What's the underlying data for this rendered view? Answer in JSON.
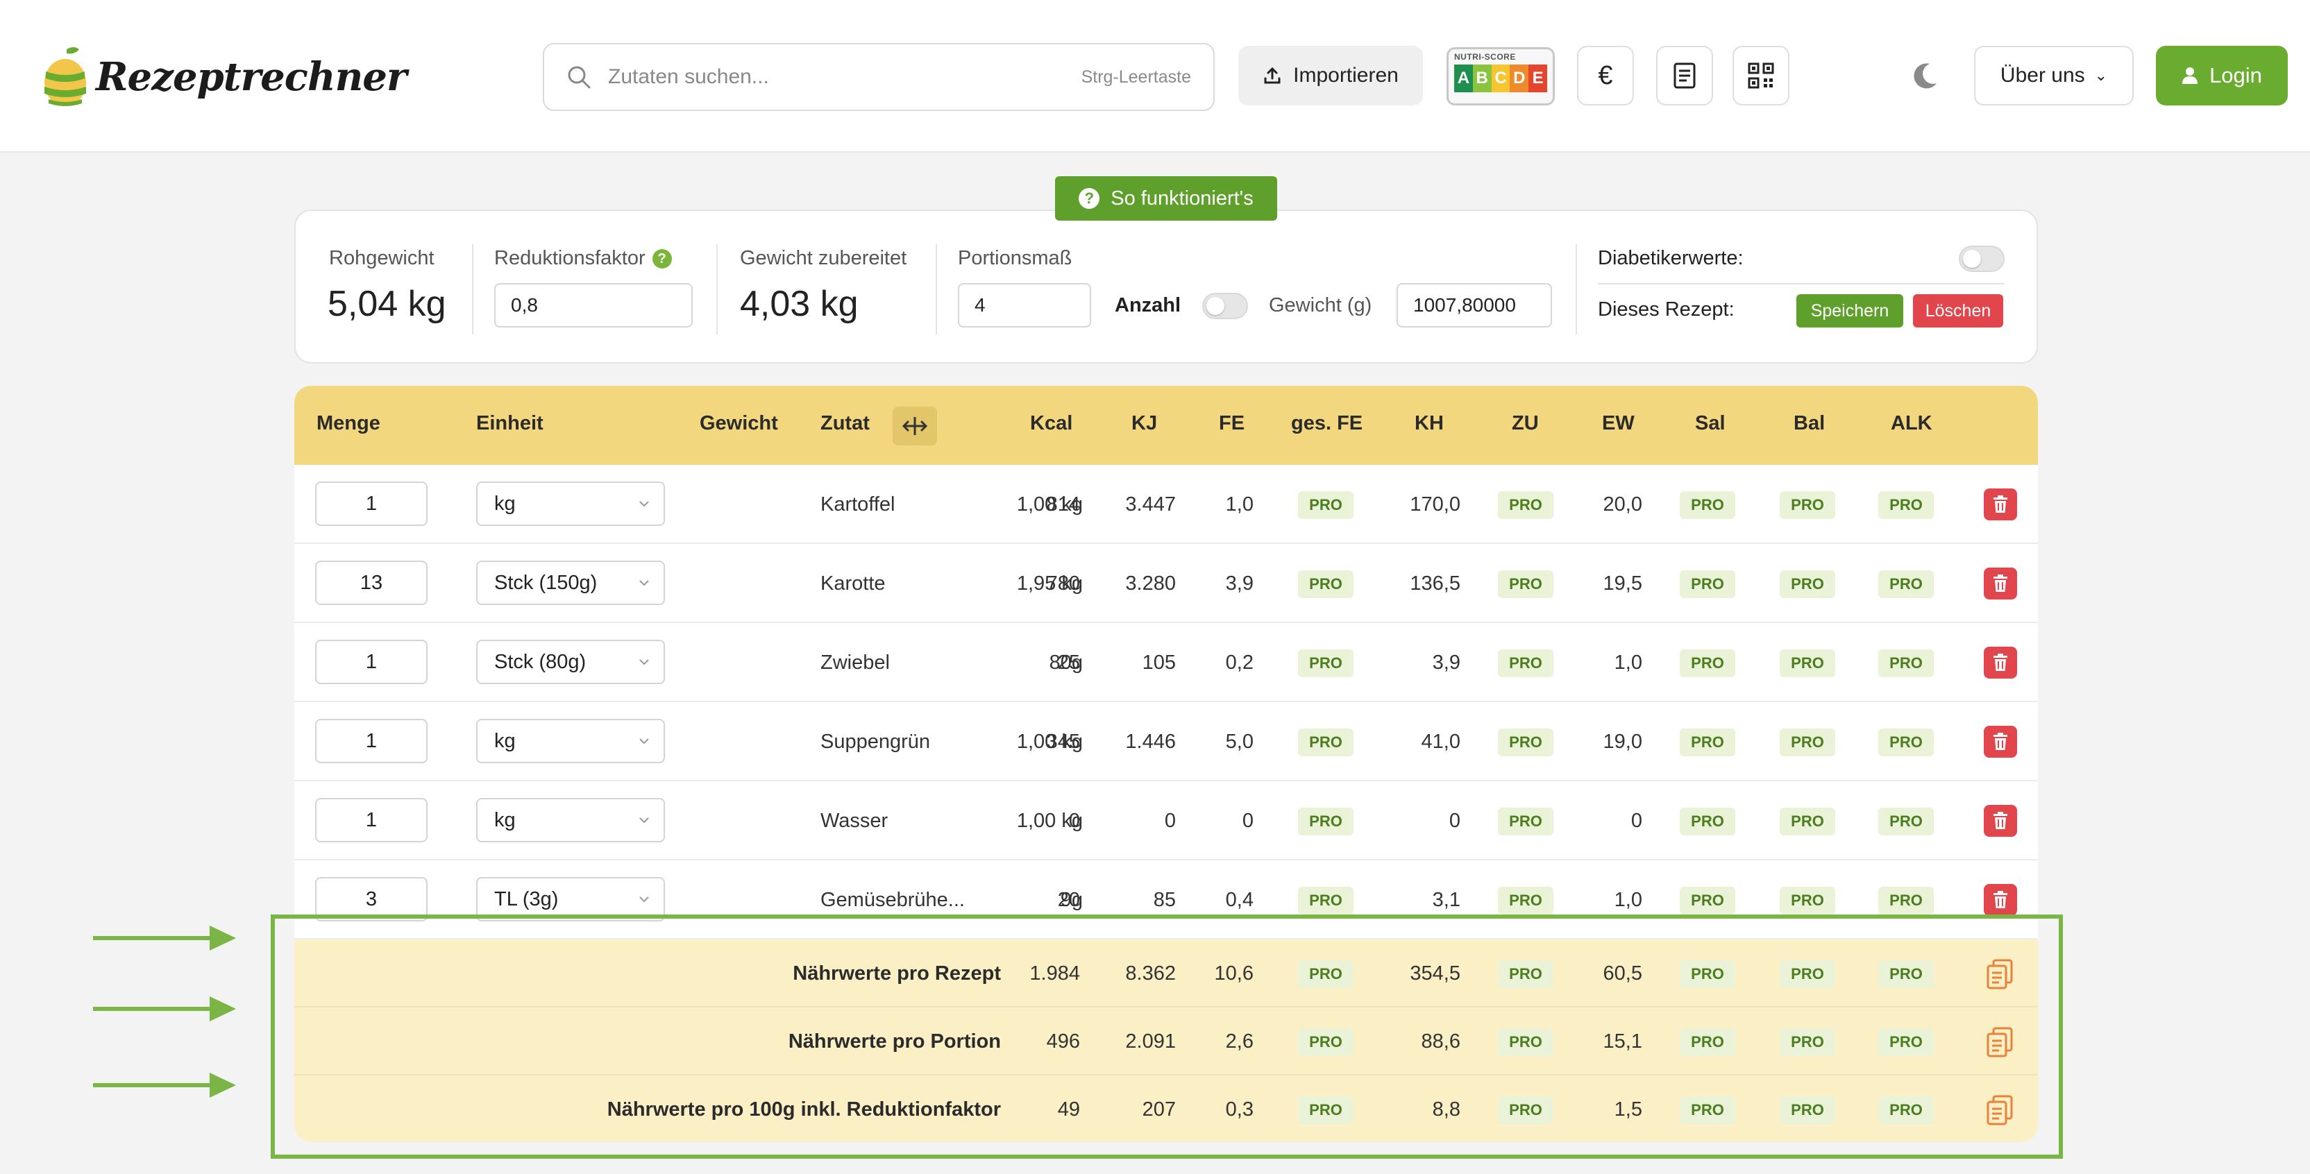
{
  "header": {
    "logo_text": "Rezeptrechner",
    "search_placeholder": "Zutaten suchen...",
    "search_shortcut": "Strg-Leertaste",
    "import_label": "Importieren",
    "nutriscore": {
      "title": "NUTRI-SCORE",
      "letters": [
        "A",
        "B",
        "C",
        "D",
        "E"
      ],
      "colors": [
        "#1e8f4e",
        "#8ac43f",
        "#f7c52e",
        "#ef8a2a",
        "#e4452d"
      ]
    },
    "currency_icon": "euro-icon",
    "document_icon": "document-icon",
    "qr_icon": "qr-code-icon",
    "theme_icon": "moon-icon",
    "about_label": "Über uns",
    "login_label": "Login"
  },
  "howto_label": "So funktioniert's",
  "summary": {
    "raw_weight_label": "Rohgewicht",
    "raw_weight_value": "5,04 kg",
    "reduction_label": "Reduktionsfaktor",
    "reduction_value": "0,8",
    "prepared_label": "Gewicht zubereitet",
    "prepared_value": "4,03 kg",
    "portion_label": "Portionsmaß",
    "portion_value": "4",
    "count_label": "Anzahl",
    "weight_label": "Gewicht (g)",
    "weight_value": "1007,80000",
    "diabetic_label": "Diabetikerwerte:",
    "recipe_label": "Dieses Rezept:",
    "save_label": "Speichern",
    "delete_label": "Löschen"
  },
  "table": {
    "headers": {
      "menge": "Menge",
      "einheit": "Einheit",
      "gewicht": "Gewicht",
      "zutat": "Zutat",
      "kcal": "Kcal",
      "kj": "KJ",
      "fe": "FE",
      "gesfe": "ges. FE",
      "kh": "KH",
      "zu": "ZU",
      "ew": "EW",
      "sal": "Sal",
      "bal": "Bal",
      "alk": "ALK"
    },
    "pro_label": "PRO",
    "rows": [
      {
        "qty": "1",
        "unit": "kg",
        "weight": "1,00 kg",
        "name": "Kartoffel",
        "kcal": "814",
        "kj": "3.447",
        "fe": "1,0",
        "kh": "170,0",
        "ew": "20,0"
      },
      {
        "qty": "13",
        "unit": "Stck (150g)",
        "weight": "1,95 kg",
        "name": "Karotte",
        "kcal": "780",
        "kj": "3.280",
        "fe": "3,9",
        "kh": "136,5",
        "ew": "19,5"
      },
      {
        "qty": "1",
        "unit": "Stck (80g)",
        "weight": "80g",
        "name": "Zwiebel",
        "kcal": "25",
        "kj": "105",
        "fe": "0,2",
        "kh": "3,9",
        "ew": "1,0"
      },
      {
        "qty": "1",
        "unit": "kg",
        "weight": "1,00 kg",
        "name": "Suppengrün",
        "kcal": "345",
        "kj": "1.446",
        "fe": "5,0",
        "kh": "41,0",
        "ew": "19,0"
      },
      {
        "qty": "1",
        "unit": "kg",
        "weight": "1,00 kg",
        "name": "Wasser",
        "kcal": "0",
        "kj": "0",
        "fe": "0",
        "kh": "0",
        "ew": "0"
      },
      {
        "qty": "3",
        "unit": "TL (3g)",
        "weight": "9g",
        "name": "Gemüsebrühe...",
        "kcal": "20",
        "kj": "85",
        "fe": "0,4",
        "kh": "3,1",
        "ew": "1,0"
      }
    ],
    "summary_rows": [
      {
        "label": "Nährwerte pro Rezept",
        "kcal": "1.984",
        "kj": "8.362",
        "fe": "10,6",
        "kh": "354,5",
        "ew": "60,5"
      },
      {
        "label": "Nährwerte pro Portion",
        "kcal": "496",
        "kj": "2.091",
        "fe": "2,6",
        "kh": "88,6",
        "ew": "15,1"
      },
      {
        "label": "Nährwerte pro 100g inkl. Reduktionfaktor",
        "kcal": "49",
        "kj": "207",
        "fe": "0,3",
        "kh": "8,8",
        "ew": "1,5"
      }
    ]
  },
  "annotation": {
    "color": "#7bb545"
  }
}
